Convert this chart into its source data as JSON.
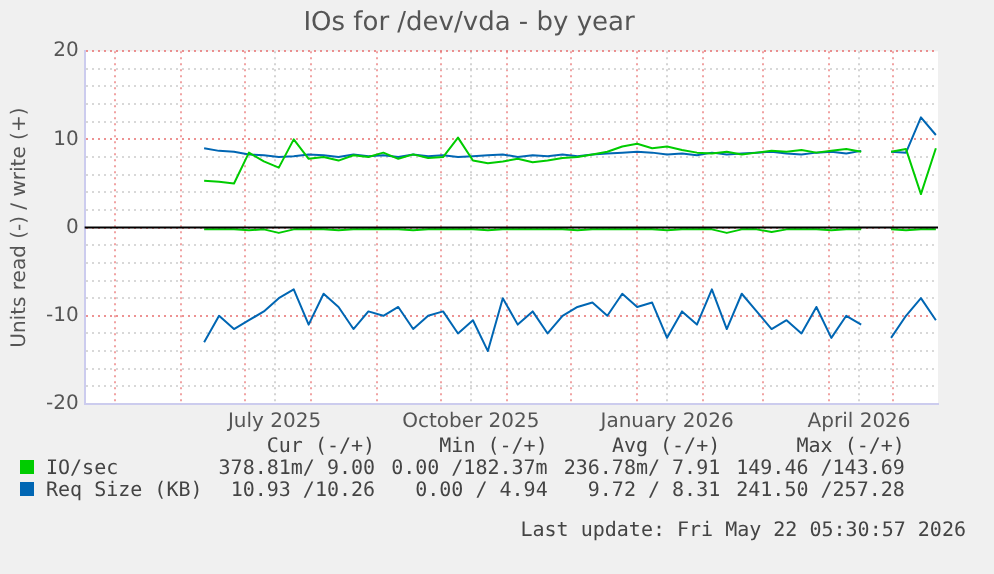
{
  "chart_data": {
    "type": "line",
    "title": "IOs for /dev/vda - by year",
    "ylabel": "Units read (-) / write (+)",
    "x": [
      "2025-06-12",
      "2025-06-19",
      "2025-06-26",
      "2025-07-03",
      "2025-07-10",
      "2025-07-17",
      "2025-07-24",
      "2025-07-31",
      "2025-08-07",
      "2025-08-14",
      "2025-08-21",
      "2025-08-28",
      "2025-09-04",
      "2025-09-11",
      "2025-09-18",
      "2025-09-25",
      "2025-10-02",
      "2025-10-09",
      "2025-10-16",
      "2025-10-23",
      "2025-10-30",
      "2025-11-06",
      "2025-11-13",
      "2025-11-20",
      "2025-11-27",
      "2025-12-04",
      "2025-12-11",
      "2025-12-18",
      "2025-12-25",
      "2026-01-01",
      "2026-01-08",
      "2026-01-15",
      "2026-01-22",
      "2026-01-29",
      "2026-02-05",
      "2026-02-12",
      "2026-02-19",
      "2026-02-26",
      "2026-03-05",
      "2026-03-12",
      "2026-03-19",
      "2026-03-26",
      "2026-04-02",
      "2026-04-09",
      "2026-04-16",
      "2026-04-23",
      "2026-04-30",
      "2026-05-07",
      "2026-05-14",
      "2026-05-21"
    ],
    "series": [
      {
        "name": "IO/sec",
        "color": "#00cc00",
        "values": [
          5.3,
          5.2,
          5.0,
          8.5,
          7.5,
          6.8,
          10.0,
          7.8,
          8.0,
          7.6,
          8.2,
          8.0,
          8.5,
          7.8,
          8.3,
          7.9,
          8.0,
          10.2,
          7.6,
          7.3,
          7.5,
          7.8,
          7.4,
          7.6,
          7.9,
          8.0,
          8.3,
          8.6,
          9.2,
          9.5,
          9.0,
          9.2,
          8.8,
          8.5,
          8.4,
          8.6,
          8.3,
          8.5,
          8.7,
          8.6,
          8.8,
          8.5,
          8.7,
          8.9,
          8.6,
          null,
          8.6,
          8.9,
          3.8,
          9.0
        ]
      },
      {
        "color": "#00cc00",
        "values": [
          -0.2,
          -0.2,
          -0.2,
          -0.3,
          -0.2,
          -0.6,
          -0.2,
          -0.2,
          -0.2,
          -0.3,
          -0.2,
          -0.2,
          -0.2,
          -0.2,
          -0.3,
          -0.2,
          -0.2,
          -0.2,
          -0.2,
          -0.3,
          -0.2,
          -0.2,
          -0.2,
          -0.2,
          -0.2,
          -0.3,
          -0.2,
          -0.2,
          -0.2,
          -0.2,
          -0.2,
          -0.3,
          -0.2,
          -0.2,
          -0.2,
          -0.6,
          -0.2,
          -0.2,
          -0.5,
          -0.2,
          -0.2,
          -0.2,
          -0.3,
          -0.2,
          -0.2,
          null,
          -0.2,
          -0.3,
          -0.2,
          -0.2
        ]
      },
      {
        "name": "Req Size (KB)",
        "color": "#0066b3",
        "values": [
          9.0,
          8.7,
          8.6,
          8.3,
          8.2,
          8.0,
          8.1,
          8.3,
          8.2,
          8.0,
          8.3,
          8.1,
          8.2,
          8.0,
          8.3,
          8.1,
          8.2,
          8.0,
          8.1,
          8.2,
          8.3,
          8.0,
          8.2,
          8.1,
          8.3,
          8.1,
          8.3,
          8.4,
          8.5,
          8.6,
          8.5,
          8.3,
          8.4,
          8.2,
          8.5,
          8.3,
          8.4,
          8.5,
          8.6,
          8.4,
          8.3,
          8.5,
          8.6,
          8.4,
          8.7,
          null,
          8.6,
          8.5,
          12.5,
          10.5
        ]
      },
      {
        "color": "#0066b3",
        "values": [
          -13.0,
          -10.0,
          -11.5,
          -10.5,
          -9.5,
          -8.0,
          -7.0,
          -11.0,
          -7.5,
          -9.0,
          -11.5,
          -9.5,
          -10.0,
          -9.0,
          -11.5,
          -10.0,
          -9.5,
          -12.0,
          -10.5,
          -14.0,
          -8.0,
          -11.0,
          -9.5,
          -12.0,
          -10.0,
          -9.0,
          -8.5,
          -10.0,
          -7.5,
          -9.0,
          -8.5,
          -12.5,
          -9.5,
          -11.0,
          -7.0,
          -11.5,
          -7.5,
          -9.5,
          -11.5,
          -10.5,
          -12.0,
          -9.0,
          -12.5,
          -10.0,
          -11.0,
          null,
          -12.5,
          -10.0,
          -8.0,
          -10.5
        ]
      }
    ],
    "xlim": [
      "2025-04-17",
      "2026-05-22"
    ],
    "xticks": [
      {
        "value": "2025-05-01",
        "label": null
      },
      {
        "value": "2025-06-01",
        "label": null
      },
      {
        "value": "2025-07-01",
        "label": null
      },
      {
        "value": "2025-07-15",
        "label": "July 2025"
      },
      {
        "value": "2025-08-01",
        "label": null
      },
      {
        "value": "2025-09-01",
        "label": null
      },
      {
        "value": "2025-10-01",
        "label": null
      },
      {
        "value": "2025-10-15",
        "label": "October 2025"
      },
      {
        "value": "2025-11-01",
        "label": null
      },
      {
        "value": "2025-12-01",
        "label": null
      },
      {
        "value": "2026-01-01",
        "label": null
      },
      {
        "value": "2026-01-15",
        "label": "January 2026"
      },
      {
        "value": "2026-02-01",
        "label": null
      },
      {
        "value": "2026-03-01",
        "label": null
      },
      {
        "value": "2026-04-01",
        "label": null
      },
      {
        "value": "2026-04-15",
        "label": "April 2026"
      },
      {
        "value": "2026-05-01",
        "label": null
      }
    ],
    "ylim": [
      -20,
      20
    ],
    "yticks": [
      -20,
      {
        "value": -18,
        "label": null
      },
      {
        "value": -16,
        "label": null
      },
      {
        "value": -14,
        "label": null
      },
      {
        "value": -12,
        "label": null
      },
      -10,
      {
        "value": -8,
        "label": null
      },
      {
        "value": -6,
        "label": null
      },
      {
        "value": -4,
        "label": null
      },
      {
        "value": -2,
        "label": null
      },
      0,
      {
        "value": 2,
        "label": null
      },
      {
        "value": 4,
        "label": null
      },
      {
        "value": 6,
        "label": null
      },
      {
        "value": 8,
        "label": null
      },
      10,
      {
        "value": 12,
        "label": null
      },
      {
        "value": 14,
        "label": null
      },
      {
        "value": 16,
        "label": null
      },
      {
        "value": 18,
        "label": null
      },
      20
    ],
    "ref_lines": [
      {
        "axis": "y",
        "value": 0,
        "color": "#000000"
      }
    ],
    "grid": true,
    "legend": "bottom",
    "marker": "none",
    "line_style": "solid",
    "annotations": [
      "Cur (-/+)",
      "Min (-/+)",
      "Avg (-/+)",
      "Max (-/+)",
      "378.81m/ 9.00",
      "0.00 /182.37m",
      "236.78m/ 7.91",
      "149.46 /143.69",
      "10.93 /10.26",
      "0.00 / 4.94",
      "9.72 / 8.31",
      "241.50 /257.28",
      "Last update: Fri May 22 05:30:57 2026"
    ]
  }
}
